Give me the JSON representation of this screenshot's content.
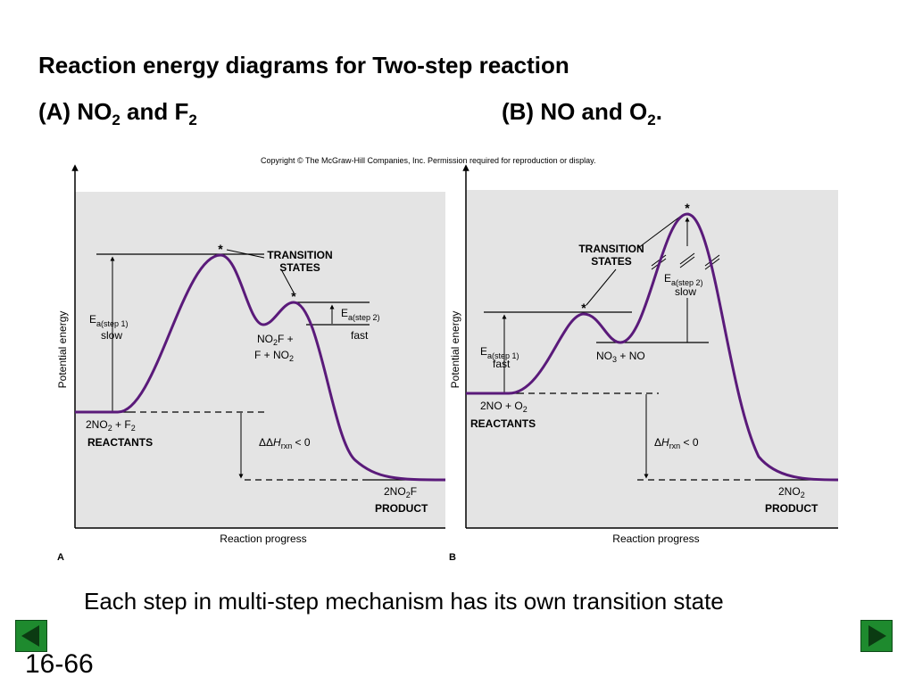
{
  "slide": {
    "title": "Reaction energy diagrams for Two-step reaction",
    "panel_a_heading": {
      "prefix": "(A) NO",
      "sub1": "2",
      "mid": " and F",
      "sub2": "2"
    },
    "panel_b_heading": {
      "prefix": "(B) NO and O",
      "sub1": "2",
      "suffix": "."
    },
    "copyright": "Copyright © The McGraw-Hill Companies, Inc. Permission required for reproduction or display.",
    "caption": "Each step in multi-step mechanism has its own transition state",
    "page_number": "16-66",
    "nav": {
      "prev_icon": "triangle-left-icon",
      "next_icon": "triangle-right-icon",
      "color": "#1e8a2e"
    }
  },
  "diagram_a": {
    "panel_letter": "A",
    "y_axis_label": "Potential energy",
    "x_axis_label": "Reaction progress",
    "transition_states_line1": "TRANSITION",
    "transition_states_line2": "STATES",
    "ts_marker": "*",
    "ea1": {
      "E": "E",
      "sub": "a(step 1)",
      "note": "slow"
    },
    "ea2": {
      "E": "E",
      "sub": "a(step 2)",
      "note": "fast"
    },
    "intermediate_line1": {
      "a": "NO",
      "sub": "2",
      "b": "F +"
    },
    "intermediate_line2": {
      "a": "F + NO",
      "sub": "2"
    },
    "reactants_formula": {
      "a": "2NO",
      "sub1": "2",
      "b": " + F",
      "sub2": "2"
    },
    "reactants_label": "REACTANTS",
    "dh": {
      "prefix": "ΔΔ",
      "H": "H",
      "sub": "rxn",
      "suffix": " < 0"
    },
    "product_formula": {
      "a": "2NO",
      "sub": "2",
      "b": "F"
    },
    "product_label": "PRODUCT"
  },
  "diagram_b": {
    "panel_letter": "B",
    "y_axis_label": "Potential energy",
    "x_axis_label": "Reaction progress",
    "transition_states_line1": "TRANSITION",
    "transition_states_line2": "STATES",
    "ts_marker": "*",
    "ea1": {
      "E": "E",
      "sub": "a(step 1)",
      "note": "fast"
    },
    "ea2": {
      "E": "E",
      "sub": "a(step 2)",
      "note": "slow"
    },
    "intermediate": {
      "a": "NO",
      "sub": "3",
      "b": " + NO"
    },
    "reactants_formula": {
      "a": "2NO + O",
      "sub": "2"
    },
    "reactants_label": "REACTANTS",
    "dh": {
      "prefix": "Δ",
      "H": "H",
      "sub": "rxn",
      "suffix": " < 0"
    },
    "product_formula": {
      "a": "2NO",
      "sub": "2"
    },
    "product_label": "PRODUCT"
  },
  "colors": {
    "curve": "#5a1a7a",
    "panel_bg": "#e4e4e4"
  }
}
